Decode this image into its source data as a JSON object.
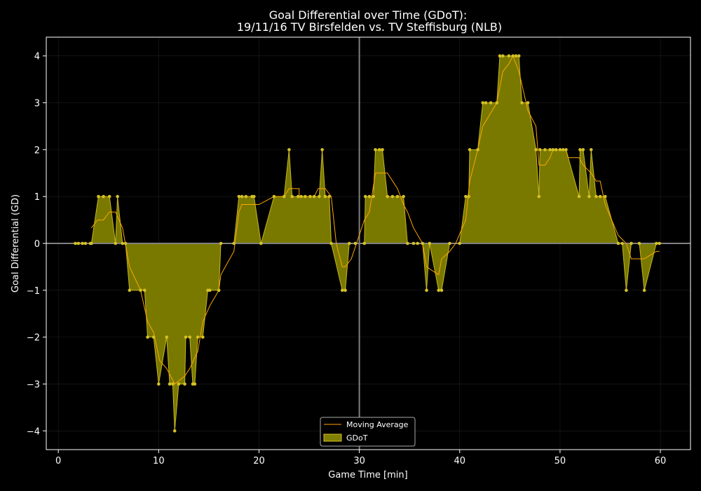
{
  "chart_data": {
    "type": "area",
    "title_line1": "Goal Differential over Time (GDoT):",
    "title_line2": "19/11/16 TV Birsfelden  vs.  TV Steffisburg (NLB)",
    "xlabel": "Game Time [min]",
    "ylabel": "Goal Differential (GD)",
    "xlim": [
      -1.2,
      63
    ],
    "ylim": [
      -4.4,
      4.4
    ],
    "xticks": [
      0,
      10,
      20,
      30,
      40,
      50,
      60
    ],
    "yticks": [
      -4,
      -3,
      -2,
      -1,
      0,
      1,
      2,
      3,
      4
    ],
    "grid": true,
    "legend_position": "lower-center",
    "colors": {
      "background": "#000000",
      "fill": "#808000",
      "points": "#d4c125",
      "moving_average": "#ffa500",
      "axes": "#ffffff",
      "reference": "#808080"
    },
    "series": [
      {
        "name": "GDoT",
        "points": [
          [
            1.7,
            0
          ],
          [
            2.0,
            0
          ],
          [
            2.4,
            0
          ],
          [
            2.7,
            0
          ],
          [
            3.2,
            0
          ],
          [
            3.3,
            0
          ],
          [
            4.0,
            1
          ],
          [
            4.5,
            1
          ],
          [
            5.1,
            1
          ],
          [
            5.7,
            0
          ],
          [
            5.9,
            1
          ],
          [
            6.4,
            0
          ],
          [
            6.7,
            0
          ],
          [
            7.1,
            -1
          ],
          [
            8.2,
            -1
          ],
          [
            8.6,
            -1
          ],
          [
            8.9,
            -2
          ],
          [
            9.5,
            -2
          ],
          [
            10.0,
            -3
          ],
          [
            10.8,
            -2
          ],
          [
            11.1,
            -3
          ],
          [
            11.4,
            -3
          ],
          [
            11.6,
            -4
          ],
          [
            12.0,
            -3
          ],
          [
            12.6,
            -3
          ],
          [
            12.7,
            -2
          ],
          [
            13.1,
            -2
          ],
          [
            13.4,
            -3
          ],
          [
            13.6,
            -3
          ],
          [
            13.9,
            -2
          ],
          [
            14.4,
            -2
          ],
          [
            14.9,
            -1
          ],
          [
            15.1,
            -1
          ],
          [
            16.0,
            -1
          ],
          [
            16.2,
            0
          ],
          [
            17.5,
            0
          ],
          [
            18.0,
            1
          ],
          [
            18.3,
            1
          ],
          [
            18.7,
            1
          ],
          [
            19.3,
            1
          ],
          [
            19.5,
            1
          ],
          [
            20.2,
            0
          ],
          [
            21.5,
            1
          ],
          [
            22.5,
            1
          ],
          [
            23.0,
            2
          ],
          [
            23.3,
            1
          ],
          [
            23.9,
            1
          ],
          [
            24.2,
            1
          ],
          [
            24.6,
            1
          ],
          [
            25.1,
            1
          ],
          [
            25.5,
            1
          ],
          [
            26.0,
            1
          ],
          [
            26.3,
            2
          ],
          [
            26.6,
            1
          ],
          [
            27.0,
            1
          ],
          [
            27.2,
            0
          ],
          [
            28.3,
            -1
          ],
          [
            28.6,
            -1
          ],
          [
            29.0,
            0
          ],
          [
            29.6,
            0
          ],
          [
            30.5,
            0
          ],
          [
            30.6,
            1
          ],
          [
            31.0,
            1
          ],
          [
            31.4,
            1
          ],
          [
            31.6,
            2
          ],
          [
            32.0,
            2
          ],
          [
            32.3,
            2
          ],
          [
            32.8,
            1
          ],
          [
            33.3,
            1
          ],
          [
            33.8,
            1
          ],
          [
            34.4,
            1
          ],
          [
            34.8,
            0
          ],
          [
            35.4,
            0
          ],
          [
            35.8,
            0
          ],
          [
            36.3,
            0
          ],
          [
            36.7,
            -1
          ],
          [
            37.0,
            0
          ],
          [
            37.9,
            -1
          ],
          [
            38.2,
            -1
          ],
          [
            39.0,
            0
          ],
          [
            40.0,
            0
          ],
          [
            40.6,
            1
          ],
          [
            40.9,
            1
          ],
          [
            41.0,
            2
          ],
          [
            41.8,
            2
          ],
          [
            42.3,
            3
          ],
          [
            42.6,
            3
          ],
          [
            43.1,
            3
          ],
          [
            43.7,
            3
          ],
          [
            44.0,
            4
          ],
          [
            44.3,
            4
          ],
          [
            44.9,
            4
          ],
          [
            45.3,
            4
          ],
          [
            45.6,
            4
          ],
          [
            45.9,
            4
          ],
          [
            46.2,
            3
          ],
          [
            46.8,
            3
          ],
          [
            47.6,
            2
          ],
          [
            47.9,
            1
          ],
          [
            48.0,
            2
          ],
          [
            48.5,
            2
          ],
          [
            49.0,
            2
          ],
          [
            49.3,
            2
          ],
          [
            49.6,
            2
          ],
          [
            50.0,
            2
          ],
          [
            50.3,
            2
          ],
          [
            50.6,
            2
          ],
          [
            51.9,
            1
          ],
          [
            52.0,
            2
          ],
          [
            52.3,
            2
          ],
          [
            52.9,
            1
          ],
          [
            53.1,
            2
          ],
          [
            53.6,
            1
          ],
          [
            54.0,
            1
          ],
          [
            54.5,
            1
          ],
          [
            55.8,
            0
          ],
          [
            56.2,
            0
          ],
          [
            56.6,
            -1
          ],
          [
            57.1,
            0
          ],
          [
            57.9,
            0
          ],
          [
            58.4,
            -1
          ],
          [
            59.6,
            0
          ],
          [
            59.9,
            0
          ]
        ]
      },
      {
        "name": "Moving Average",
        "points": [
          [
            3.3,
            0.33
          ],
          [
            3.9,
            0.5
          ],
          [
            4.5,
            0.5
          ],
          [
            5.1,
            0.67
          ],
          [
            5.7,
            0.67
          ],
          [
            6.4,
            0.33
          ],
          [
            7.1,
            -0.5
          ],
          [
            8.2,
            -1.0
          ],
          [
            8.9,
            -1.67
          ],
          [
            9.5,
            -1.9
          ],
          [
            10.1,
            -2.5
          ],
          [
            10.8,
            -2.67
          ],
          [
            11.6,
            -3.0
          ],
          [
            12.6,
            -2.83
          ],
          [
            13.1,
            -2.67
          ],
          [
            13.9,
            -2.3
          ],
          [
            14.4,
            -1.67
          ],
          [
            15.1,
            -1.33
          ],
          [
            16.0,
            -1.0
          ],
          [
            16.2,
            -0.67
          ],
          [
            17.5,
            -0.17
          ],
          [
            18.0,
            0.67
          ],
          [
            18.3,
            0.83
          ],
          [
            20.0,
            0.83
          ],
          [
            21.5,
            1.0
          ],
          [
            22.5,
            1.0
          ],
          [
            23.0,
            1.17
          ],
          [
            24.0,
            1.17
          ],
          [
            24.0,
            1.0
          ],
          [
            25.5,
            1.0
          ],
          [
            25.9,
            1.17
          ],
          [
            26.6,
            1.17
          ],
          [
            27.2,
            1.0
          ],
          [
            27.7,
            0.0
          ],
          [
            28.3,
            -0.5
          ],
          [
            28.6,
            -0.5
          ],
          [
            29.2,
            -0.33
          ],
          [
            30.5,
            0.5
          ],
          [
            31.0,
            0.67
          ],
          [
            31.6,
            1.5
          ],
          [
            32.8,
            1.5
          ],
          [
            33.8,
            1.17
          ],
          [
            34.4,
            0.83
          ],
          [
            34.8,
            0.67
          ],
          [
            35.4,
            0.33
          ],
          [
            36.3,
            0.0
          ],
          [
            36.7,
            -0.5
          ],
          [
            37.9,
            -0.67
          ],
          [
            38.2,
            -0.33
          ],
          [
            39.0,
            -0.17
          ],
          [
            39.6,
            0.0
          ],
          [
            40.6,
            0.5
          ],
          [
            41.0,
            1.33
          ],
          [
            41.8,
            2.0
          ],
          [
            42.3,
            2.5
          ],
          [
            43.7,
            3.0
          ],
          [
            44.3,
            3.67
          ],
          [
            44.9,
            3.83
          ],
          [
            45.3,
            4.0
          ],
          [
            45.9,
            3.67
          ],
          [
            46.8,
            2.83
          ],
          [
            47.6,
            2.5
          ],
          [
            47.9,
            1.67
          ],
          [
            48.5,
            1.67
          ],
          [
            49.0,
            1.83
          ],
          [
            49.3,
            2.0
          ],
          [
            50.6,
            2.0
          ],
          [
            50.8,
            1.83
          ],
          [
            51.9,
            1.83
          ],
          [
            52.3,
            1.67
          ],
          [
            53.1,
            1.5
          ],
          [
            53.6,
            1.33
          ],
          [
            54.0,
            1.33
          ],
          [
            54.5,
            0.83
          ],
          [
            55.8,
            0.17
          ],
          [
            56.6,
            0.0
          ],
          [
            57.1,
            -0.33
          ],
          [
            57.9,
            -0.33
          ],
          [
            58.4,
            -0.33
          ],
          [
            59.6,
            -0.17
          ],
          [
            59.9,
            -0.17
          ]
        ]
      }
    ]
  },
  "legend": {
    "items": [
      {
        "label": "Moving Average",
        "type": "line"
      },
      {
        "label": "GDoT",
        "type": "area"
      }
    ]
  }
}
